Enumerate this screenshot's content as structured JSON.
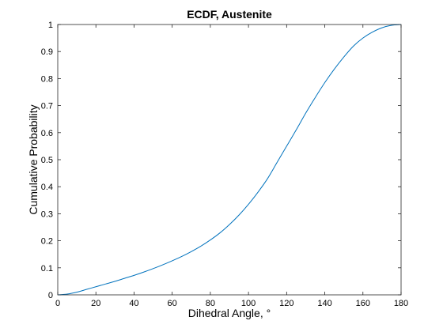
{
  "chart_data": {
    "type": "line",
    "title": "ECDF, Austenite",
    "xlabel": "Dihedral Angle, °",
    "ylabel": "Cumulative Probability",
    "xlim": [
      0,
      180
    ],
    "ylim": [
      0,
      1
    ],
    "xticks": [
      "0",
      "20",
      "40",
      "60",
      "80",
      "100",
      "120",
      "140",
      "160",
      "180"
    ],
    "yticks": [
      "0",
      "0.1",
      "0.2",
      "0.3",
      "0.4",
      "0.5",
      "0.6",
      "0.7",
      "0.8",
      "0.9",
      "1"
    ],
    "grid": false,
    "legend": "none",
    "line_color": "#0072bd",
    "series": [
      {
        "x": [
          0,
          5,
          10,
          15,
          20,
          25,
          30,
          35,
          40,
          45,
          50,
          55,
          60,
          65,
          70,
          75,
          80,
          85,
          90,
          95,
          100,
          105,
          110,
          115,
          120,
          125,
          130,
          135,
          140,
          145,
          150,
          155,
          160,
          165,
          170,
          175,
          180
        ],
        "values": [
          0.0,
          0.003,
          0.01,
          0.02,
          0.03,
          0.04,
          0.05,
          0.061,
          0.072,
          0.084,
          0.097,
          0.111,
          0.126,
          0.142,
          0.16,
          0.18,
          0.203,
          0.229,
          0.26,
          0.295,
          0.335,
          0.38,
          0.43,
          0.49,
          0.55,
          0.61,
          0.672,
          0.73,
          0.785,
          0.835,
          0.88,
          0.92,
          0.95,
          0.972,
          0.988,
          0.997,
          1.0
        ]
      }
    ]
  }
}
